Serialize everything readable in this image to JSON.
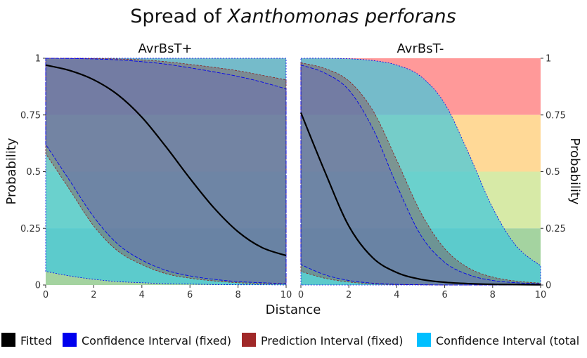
{
  "chart_data": {
    "type": "line",
    "title": {
      "prefix": "Spread of ",
      "italic": "Xanthomonas perforans"
    },
    "xlabel": "Distance",
    "ylabel_left": "Probability",
    "ylabel_right": "Probability",
    "xlim": [
      0,
      10
    ],
    "ylim": [
      0,
      1
    ],
    "x_ticks": [
      "0",
      "2",
      "4",
      "6",
      "8",
      "10"
    ],
    "y_ticks": [
      "0",
      "0.25",
      "0.5",
      "0.75",
      "1"
    ],
    "background_bands": [
      {
        "from": 0.75,
        "to": 1.0,
        "color": "#ff9999"
      },
      {
        "from": 0.5,
        "to": 0.75,
        "color": "#ffd997"
      },
      {
        "from": 0.25,
        "to": 0.5,
        "color": "#d7eaa7"
      },
      {
        "from": 0.0,
        "to": 0.25,
        "color": "#a4d3a0"
      }
    ],
    "band_colors": {
      "confidence_total": "#40c8dc",
      "prediction": "#8a3a3a",
      "confidence_fixed": "#6060c8",
      "fitted": "#000000",
      "ci_line": "#0000ee",
      "pi_line": "#8a2020"
    },
    "x": [
      0,
      1,
      2,
      3,
      4,
      5,
      6,
      7,
      8,
      9,
      10
    ],
    "panels": [
      {
        "label": "AvrBsT+",
        "fitted": [
          0.97,
          0.946,
          0.905,
          0.839,
          0.74,
          0.61,
          0.47,
          0.34,
          0.235,
          0.165,
          0.13
        ],
        "ci_fixed_upper": [
          1.0,
          0.999,
          0.997,
          0.993,
          0.985,
          0.974,
          0.958,
          0.94,
          0.92,
          0.895,
          0.865
        ],
        "ci_fixed_lower": [
          0.62,
          0.46,
          0.3,
          0.18,
          0.11,
          0.065,
          0.04,
          0.025,
          0.015,
          0.01,
          0.006
        ],
        "pi_fixed_upper": [
          1.0,
          1.0,
          0.999,
          0.997,
          0.993,
          0.985,
          0.973,
          0.96,
          0.945,
          0.925,
          0.905
        ],
        "pi_fixed_lower": [
          0.58,
          0.42,
          0.26,
          0.15,
          0.09,
          0.05,
          0.03,
          0.018,
          0.01,
          0.006,
          0.004
        ],
        "ci_total_upper": [
          1.0,
          1.0,
          1.0,
          1.0,
          1.0,
          1.0,
          1.0,
          1.0,
          1.0,
          1.0,
          1.0
        ],
        "ci_total_lower": [
          0.06,
          0.04,
          0.025,
          0.015,
          0.01,
          0.006,
          0.004,
          0.002,
          0.001,
          0.001,
          0.0
        ]
      },
      {
        "label": "AvrBsT-",
        "fitted": [
          0.76,
          0.5,
          0.26,
          0.12,
          0.055,
          0.025,
          0.012,
          0.006,
          0.003,
          0.002,
          0.001
        ],
        "ci_fixed_upper": [
          0.97,
          0.935,
          0.86,
          0.69,
          0.44,
          0.22,
          0.1,
          0.045,
          0.02,
          0.01,
          0.005
        ],
        "ci_fixed_lower": [
          0.09,
          0.045,
          0.02,
          0.008,
          0.003,
          0.001,
          0.0,
          0.0,
          0.0,
          0.0,
          0.0
        ],
        "pi_fixed_upper": [
          0.98,
          0.955,
          0.9,
          0.77,
          0.55,
          0.32,
          0.16,
          0.075,
          0.035,
          0.017,
          0.008
        ],
        "pi_fixed_lower": [
          0.06,
          0.03,
          0.013,
          0.005,
          0.002,
          0.001,
          0.0,
          0.0,
          0.0,
          0.0,
          0.0
        ],
        "ci_total_upper": [
          1.0,
          1.0,
          0.998,
          0.99,
          0.97,
          0.92,
          0.8,
          0.58,
          0.34,
          0.17,
          0.085
        ],
        "ci_total_lower": [
          0.0,
          0.0,
          0.0,
          0.0,
          0.0,
          0.0,
          0.0,
          0.0,
          0.0,
          0.0,
          0.0
        ]
      }
    ],
    "legend": [
      {
        "label": "Fitted",
        "color": "#000000"
      },
      {
        "label": "Confidence Interval (fixed)",
        "color": "#0000ee"
      },
      {
        "label": "Prediction Interval (fixed)",
        "color": "#a02828"
      },
      {
        "label": "Confidence Interval (total",
        "color": "#00bfff"
      }
    ],
    "legend_position": "bottom"
  }
}
